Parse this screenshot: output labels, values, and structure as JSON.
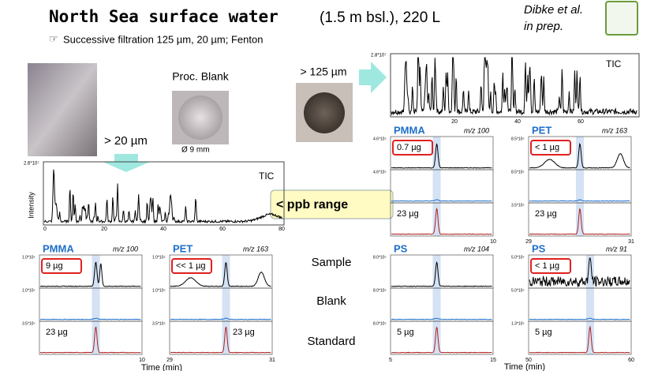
{
  "title": {
    "main": "North Sea  surface water",
    "detail": "(1.5 m bsl.), 220 L"
  },
  "citation": [
    "Dibke et al.",
    "in prep."
  ],
  "subtitle": "Successive filtration  125 µm, 20 µm; Fenton",
  "labels": {
    "gt20": "> 20 µm",
    "blank": "Proc. Blank",
    "diameter": "Ø 9 mm",
    "gt125": "> 125 µm",
    "ppb": "< ppb range"
  },
  "row_labels": [
    "Sample",
    "Blank",
    "Standard"
  ],
  "tic_top": {
    "label": "TIC",
    "ymax": "2.8*10⁷",
    "xticks": [
      "20",
      "40",
      "60"
    ]
  },
  "tic_bottom": {
    "label": "TIC",
    "ylabel": "Intensity",
    "ymax": "2.6*10⁷",
    "xticks": [
      "0",
      "20",
      "40",
      "60",
      "80"
    ]
  },
  "panels": [
    {
      "polymer": "PMMA",
      "mz": "m/z 100",
      "yticks": [
        "1.0*10⁵",
        "1.0*10⁵",
        "3.5*10⁵"
      ],
      "xticks": [
        "10"
      ],
      "sample": "9 µg",
      "standard": "23 µg"
    },
    {
      "polymer": "PET",
      "mz": "m/z 163",
      "yticks": [
        "1.0*10⁵",
        "1.0*10⁵",
        "3.5*10⁵"
      ],
      "xticks": [
        "29",
        "31"
      ],
      "sample": "<< 1 µg",
      "standard": "23 µg"
    },
    {
      "polymer": "PMMA",
      "mz": "m/z 100",
      "yticks": [
        "4.6*10⁵",
        "4.6*10⁵"
      ],
      "xticks": [
        "10"
      ],
      "sample": "0.7 µg",
      "standard": "23 µg"
    },
    {
      "polymer": "PET",
      "mz": "m/z 163",
      "yticks": [
        "8.5*10⁵",
        "8.5*10⁵",
        "3.5*10⁵"
      ],
      "xticks": [
        "29",
        "31"
      ],
      "sample": "< 1 µg",
      "standard": "23 µg"
    },
    {
      "polymer": "PS",
      "mz": "m/z 104",
      "yticks": [
        "8.0*10⁵",
        "8.0*10⁵",
        "8.0*10⁵"
      ],
      "xticks": [
        "5",
        "15"
      ],
      "standard": "5 µg"
    },
    {
      "polymer": "PS",
      "mz": "m/z 91",
      "yticks": [
        "5.0*10⁵",
        "5.0*10⁵",
        "1.3*10⁵"
      ],
      "xticks": [
        "50",
        "60"
      ],
      "sample": "< 1 µg",
      "standard": "5 µg"
    }
  ],
  "x_axis_title": "Time (min)"
}
